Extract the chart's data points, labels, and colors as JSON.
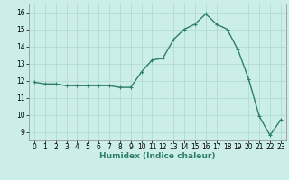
{
  "x": [
    0,
    1,
    2,
    3,
    4,
    5,
    6,
    7,
    8,
    9,
    10,
    11,
    12,
    13,
    14,
    15,
    16,
    17,
    18,
    19,
    20,
    21,
    22,
    23
  ],
  "y": [
    11.9,
    11.8,
    11.8,
    11.7,
    11.7,
    11.7,
    11.7,
    11.7,
    11.6,
    11.6,
    12.5,
    13.2,
    13.3,
    14.4,
    15.0,
    15.3,
    15.9,
    15.3,
    15.0,
    13.8,
    12.1,
    9.9,
    8.8,
    9.7
  ],
  "xlim": [
    -0.5,
    23.5
  ],
  "ylim": [
    8.5,
    16.5
  ],
  "yticks": [
    9,
    10,
    11,
    12,
    13,
    14,
    15,
    16
  ],
  "xticks": [
    0,
    1,
    2,
    3,
    4,
    5,
    6,
    7,
    8,
    9,
    10,
    11,
    12,
    13,
    14,
    15,
    16,
    17,
    18,
    19,
    20,
    21,
    22,
    23
  ],
  "xlabel": "Humidex (Indice chaleur)",
  "line_color": "#2e7d6e",
  "marker": "+",
  "marker_size": 3,
  "bg_color": "#cceee8",
  "grid_color": "#aad8d0",
  "line_width": 1.0,
  "tick_fontsize": 5.5,
  "xlabel_fontsize": 6.5
}
